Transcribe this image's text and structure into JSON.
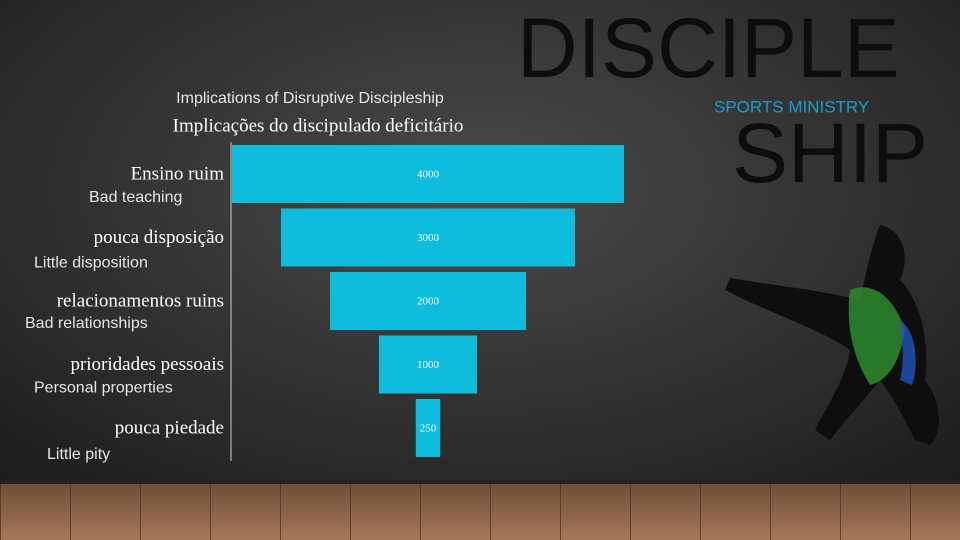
{
  "slide": {
    "heading_top": "DISCIPLE",
    "heading_bottom": "SHIP",
    "tagline": "SPORTS MINISTRY"
  },
  "chart_data": {
    "type": "funnel",
    "title": "Implicações do discipulado deficitário",
    "subtitle": "Implications of Disruptive Discipleship",
    "categories": [
      "Ensino ruim",
      "pouca disposição",
      "relacionamentos ruins",
      "prioridades pessoais",
      "pouca piedade"
    ],
    "translations": [
      "Bad teaching",
      "Little disposition",
      "Bad relationships",
      "Personal properties",
      "Little pity"
    ],
    "values": [
      4000,
      3000,
      2000,
      1000,
      250
    ],
    "color": "#0fbcdc"
  }
}
